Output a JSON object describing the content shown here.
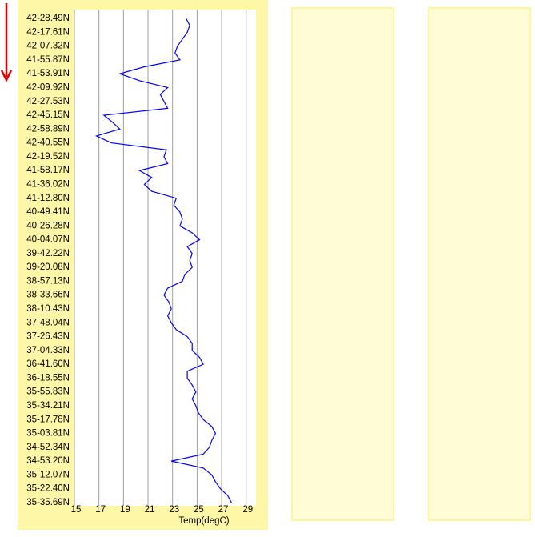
{
  "chart_data": {
    "type": "line",
    "orientation": "vertical",
    "xlabel": "Temp(degC)",
    "categories": [
      "42-28.49N",
      null,
      "42-17.61N",
      null,
      "42-07.32N",
      null,
      "41-55.87N",
      null,
      "41-53.91N",
      null,
      "42-09.92N",
      null,
      "42-27.53N",
      null,
      "42-45.15N",
      null,
      "42-58.89N",
      null,
      "42-40.55N",
      null,
      "42-19.52N",
      null,
      "41-58.17N",
      null,
      "41-36.02N",
      null,
      "41-12.80N",
      null,
      "40-49.41N",
      null,
      "40-26.28N",
      null,
      "40-04.07N",
      null,
      "39-42.22N",
      null,
      "39-20.08N",
      null,
      "38-57.13N",
      null,
      "38-33.66N",
      null,
      "38-10.43N",
      null,
      "37-48.04N",
      null,
      "37-26.43N",
      null,
      "37-04.33N",
      null,
      "36-41.60N",
      null,
      "36-18.55N",
      null,
      "35-55.83N",
      null,
      "35-34.21N",
      null,
      "35-17.78N",
      null,
      "35-03.81N",
      null,
      "34-52.34N",
      null,
      "34-53.20N",
      null,
      "35-12.07N",
      null,
      "35-22.40N",
      null,
      "35-35.69N"
    ],
    "values": [
      24.1,
      24.4,
      24.2,
      23.8,
      23.4,
      23.2,
      23.6,
      20.7,
      18.7,
      20.3,
      22.6,
      22,
      22.3,
      22.6,
      17.4,
      18.1,
      18.7,
      16.8,
      18,
      22.5,
      22.3,
      22.6,
      20.3,
      21.3,
      20.7,
      21.3,
      23.3,
      23.1,
      23.6,
      23.8,
      23.6,
      24.6,
      25.2,
      24.2,
      24.6,
      24.4,
      24.6,
      24,
      23.8,
      22.6,
      22.3,
      22.7,
      22.9,
      22.6,
      22.9,
      23.3,
      24.2,
      24.6,
      24.6,
      25.2,
      25.5,
      24.2,
      24.2,
      24.6,
      24.9,
      24.6,
      24.9,
      25.1,
      25.5,
      26.2,
      26.5,
      26.2,
      26,
      25.5,
      22.9,
      25.5,
      26.2,
      26.5,
      26.9,
      27.5,
      27.8
    ],
    "color": "#0000ff",
    "xlim": [
      15,
      29.8
    ],
    "xticks": [
      15,
      17,
      19,
      21,
      23,
      25,
      27,
      29
    ],
    "grid": true
  }
}
